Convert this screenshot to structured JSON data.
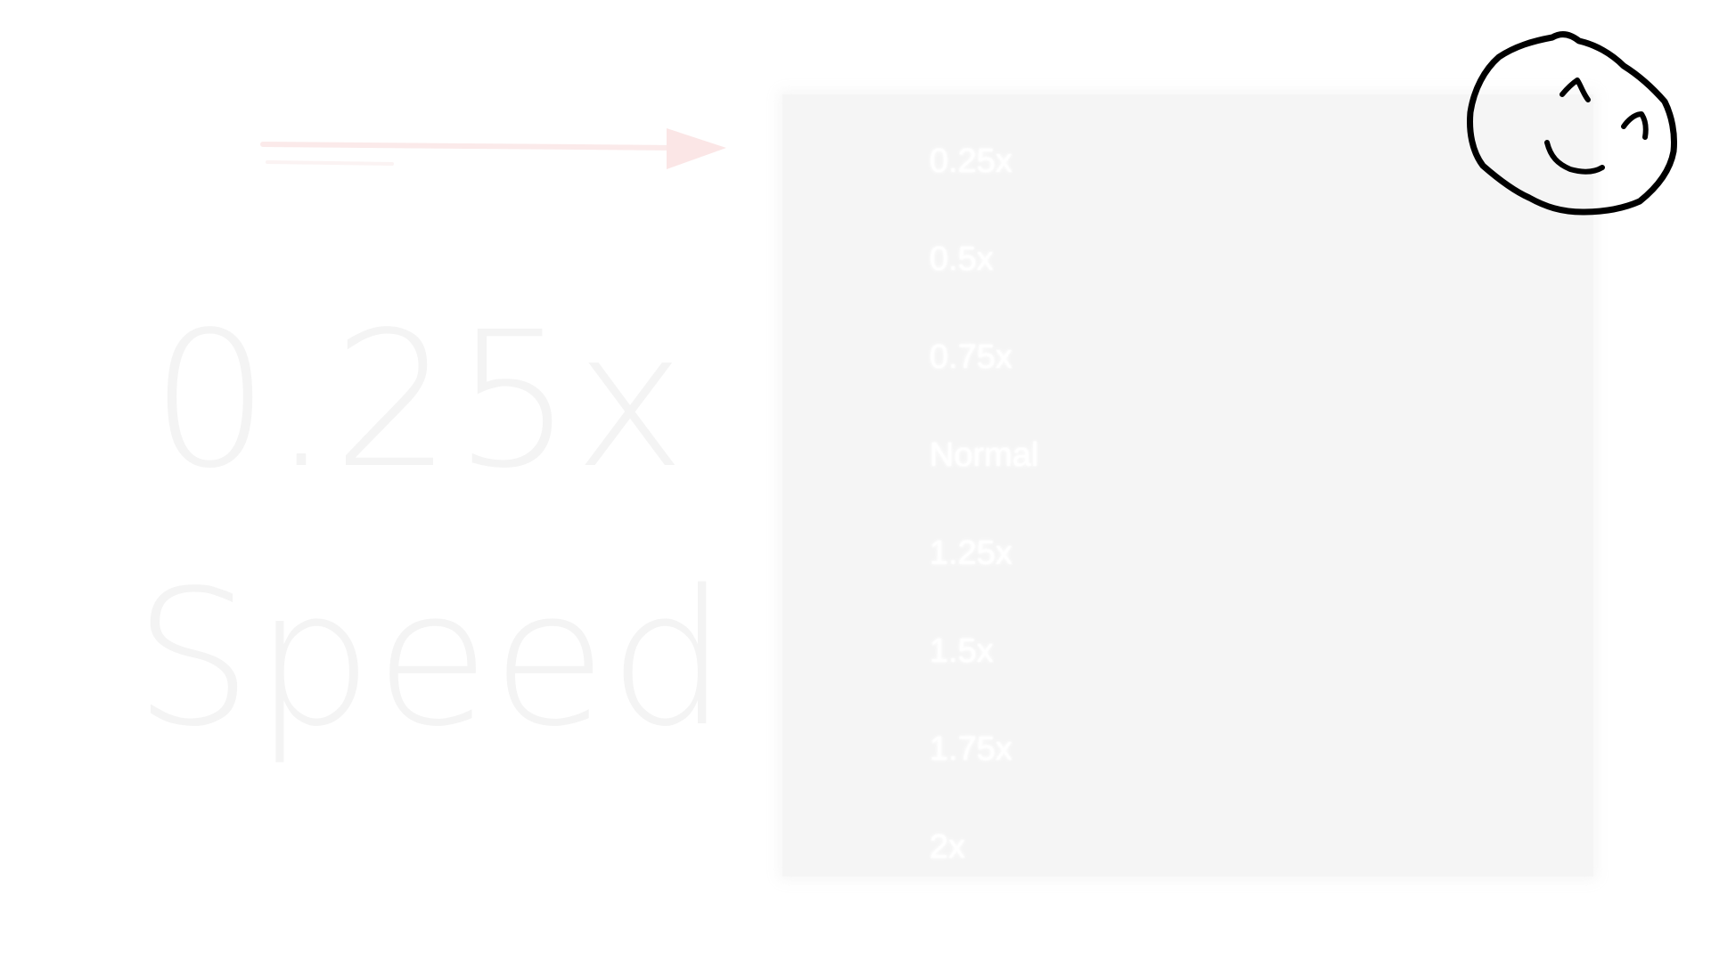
{
  "title": {
    "line1": "0.25x",
    "line2": "Speed"
  },
  "menu": {
    "options": [
      {
        "label": "0.25x"
      },
      {
        "label": "0.5x"
      },
      {
        "label": "0.75x"
      },
      {
        "label": "Normal"
      },
      {
        "label": "1.25x"
      },
      {
        "label": "1.5x"
      },
      {
        "label": "1.75x"
      },
      {
        "label": "2x"
      }
    ]
  },
  "icons": {
    "arrow": "right-arrow-icon",
    "smiley": "smiley-face-icon"
  },
  "colors": {
    "background": "#ffffff",
    "menu_background": "#f5f5f5",
    "title_text": "#f4f4f4",
    "arrow": "#fbeaea",
    "smiley_stroke": "#000000"
  }
}
